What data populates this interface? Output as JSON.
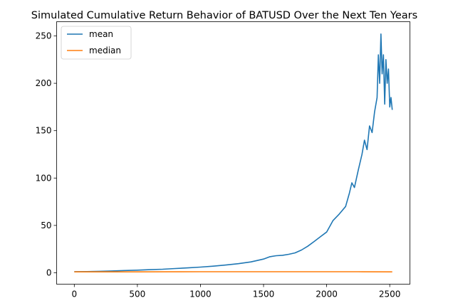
{
  "chart_data": {
    "type": "line",
    "title": "Simulated Cumulative Return Behavior of BATUSD Over the Next Ten Years",
    "xlabel": "",
    "ylabel": "",
    "xlim": [
      -140,
      2660
    ],
    "ylim": [
      -12,
      265
    ],
    "xticks": [
      0,
      500,
      1000,
      1500,
      2000,
      2500
    ],
    "yticks": [
      0,
      50,
      100,
      150,
      200,
      250
    ],
    "grid": false,
    "legend_position": "upper left",
    "series": [
      {
        "name": "mean",
        "color": "#1f77b4",
        "x": [
          0,
          100,
          200,
          300,
          400,
          500,
          600,
          700,
          800,
          900,
          1000,
          1100,
          1200,
          1300,
          1400,
          1450,
          1500,
          1550,
          1600,
          1650,
          1700,
          1750,
          1800,
          1850,
          1900,
          1950,
          2000,
          2050,
          2100,
          2150,
          2180,
          2200,
          2220,
          2250,
          2280,
          2300,
          2320,
          2340,
          2360,
          2380,
          2400,
          2410,
          2420,
          2430,
          2440,
          2450,
          2460,
          2470,
          2480,
          2490,
          2500,
          2510,
          2520
        ],
        "y": [
          1.2,
          1.3,
          1.6,
          2.0,
          2.4,
          2.8,
          3.3,
          3.8,
          4.5,
          5.2,
          6.0,
          7.0,
          8.2,
          9.6,
          11.5,
          13.0,
          14.5,
          17.0,
          18.0,
          18.5,
          19.5,
          21.0,
          24.0,
          28.0,
          33.0,
          38.0,
          43.0,
          55.0,
          62.0,
          70.0,
          84.0,
          95.0,
          90.0,
          108.0,
          125.0,
          140.0,
          130.0,
          155.0,
          148.0,
          170.0,
          185.0,
          230.0,
          200.0,
          252.0,
          210.0,
          230.0,
          178.0,
          225.0,
          200.0,
          215.0,
          175.0,
          185.0,
          172.0
        ]
      },
      {
        "name": "median",
        "color": "#ff7f0e",
        "x": [
          0,
          250,
          500,
          750,
          1000,
          1250,
          1500,
          1750,
          2000,
          2250,
          2520
        ],
        "y": [
          1.0,
          1.0,
          1.0,
          1.05,
          1.1,
          1.1,
          1.1,
          1.1,
          1.1,
          1.1,
          1.0
        ]
      }
    ]
  }
}
